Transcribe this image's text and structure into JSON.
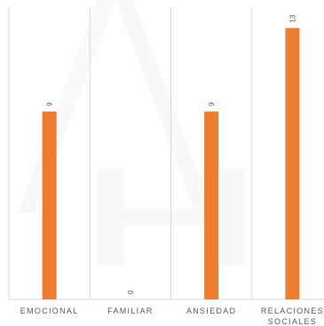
{
  "chart_data": {
    "type": "bar",
    "categories": [
      "EMOCIONAL",
      "FAMILIAR",
      "ANSIEDAD",
      "RELACIONES SOCIALES"
    ],
    "category_lines": [
      [
        "EMOCIONAL"
      ],
      [
        "FAMILIAR"
      ],
      [
        "ANSIEDAD"
      ],
      [
        "RELACIONES",
        "SOCIALES"
      ]
    ],
    "values": [
      9,
      0,
      9,
      13
    ],
    "ylim": [
      0,
      14
    ],
    "title": "",
    "xlabel": "",
    "ylabel": "",
    "grid": "vertical-category-separators",
    "legend": "none",
    "bar_color": "#ED7D31",
    "grid_color": "#D9D9D9",
    "label_color": "#595959"
  }
}
